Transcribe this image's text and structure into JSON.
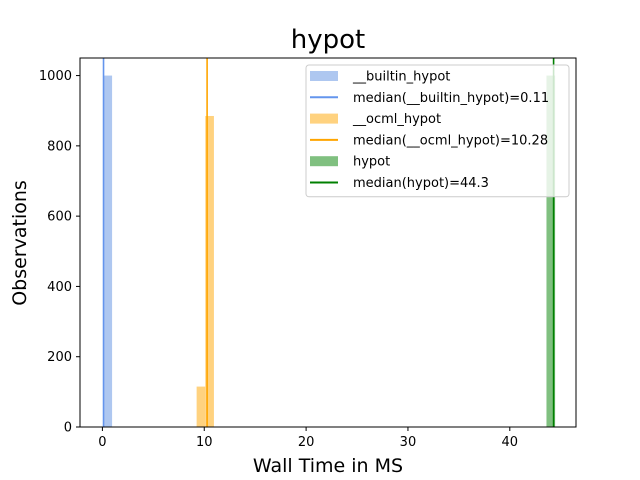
{
  "chart_data": {
    "type": "bar",
    "title": "hypot",
    "xlabel": "Wall Time in MS",
    "ylabel": "Observations",
    "xlim": [
      -2.2,
      46.5
    ],
    "ylim": [
      0,
      1050
    ],
    "xticks": [
      0,
      10,
      20,
      30,
      40
    ],
    "yticks": [
      0,
      200,
      400,
      600,
      800,
      1000
    ],
    "grid": false,
    "legend_position": "top-right",
    "series": [
      {
        "name": "__builtin_hypot",
        "color": "#aec7f0",
        "bins": [
          {
            "x0": 0.1,
            "x1": 0.95,
            "value": 1000
          }
        ],
        "median": 0.11,
        "median_label": "median(__builtin_hypot)=0.11",
        "median_color": "#6495ed"
      },
      {
        "name": "__ocml_hypot",
        "color": "#ffd27f",
        "bins": [
          {
            "x0": 9.25,
            "x1": 10.1,
            "value": 115
          },
          {
            "x0": 10.1,
            "x1": 10.95,
            "value": 885
          }
        ],
        "median": 10.28,
        "median_label": "median(__ocml_hypot)=10.28",
        "median_color": "#ffa500"
      },
      {
        "name": "hypot",
        "color": "#80c080",
        "bins": [
          {
            "x0": 43.6,
            "x1": 44.45,
            "value": 1000
          }
        ],
        "median": 44.3,
        "median_label": "median(hypot)=44.3",
        "median_color": "#008000"
      }
    ]
  }
}
